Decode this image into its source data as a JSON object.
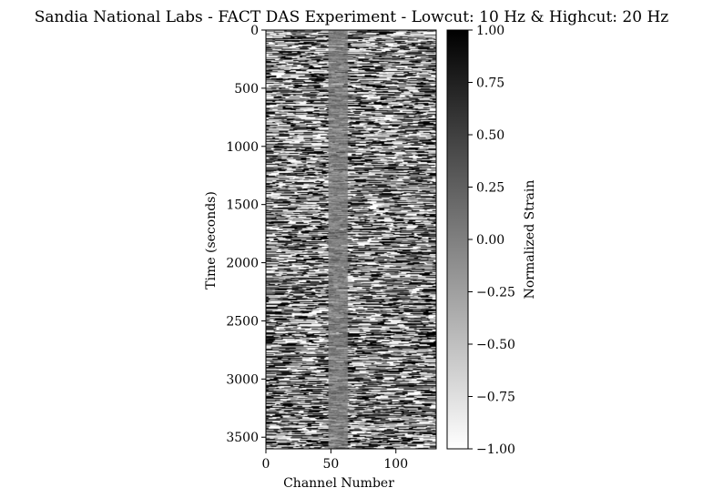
{
  "chart_data": {
    "type": "heatmap",
    "title": "Sandia National Labs - FACT DAS Experiment - Lowcut: 10 Hz & Highcut: 20 Hz",
    "xlabel": "Channel Number",
    "ylabel": "Time (seconds)",
    "xlim": [
      0,
      131
    ],
    "ylim": [
      3600,
      0
    ],
    "x_ticks": [
      0,
      50,
      100
    ],
    "x_tick_labels": [
      "0",
      "50",
      "100"
    ],
    "y_ticks": [
      0,
      500,
      1000,
      1500,
      2000,
      2500,
      3000,
      3500
    ],
    "y_tick_labels": [
      "0",
      "500",
      "1000",
      "1500",
      "2000",
      "2500",
      "3000",
      "3500"
    ],
    "colormap": "gray_r",
    "colorbar": {
      "label": "Normalized Strain",
      "range": [
        -1.0,
        1.0
      ],
      "ticks": [
        1.0,
        0.75,
        0.5,
        0.25,
        0.0,
        -0.25,
        -0.5,
        -0.75,
        -1.0
      ],
      "tick_labels": [
        "1.00",
        "0.75",
        "0.50",
        "0.25",
        "0.00",
        "−0.25",
        "−0.50",
        "−0.75",
        "−1.00"
      ]
    },
    "grid": false,
    "quiet_channel_band": [
      48,
      62
    ]
  },
  "colors": {
    "high": "#000000",
    "low": "#ffffff",
    "axis": "#000000"
  }
}
